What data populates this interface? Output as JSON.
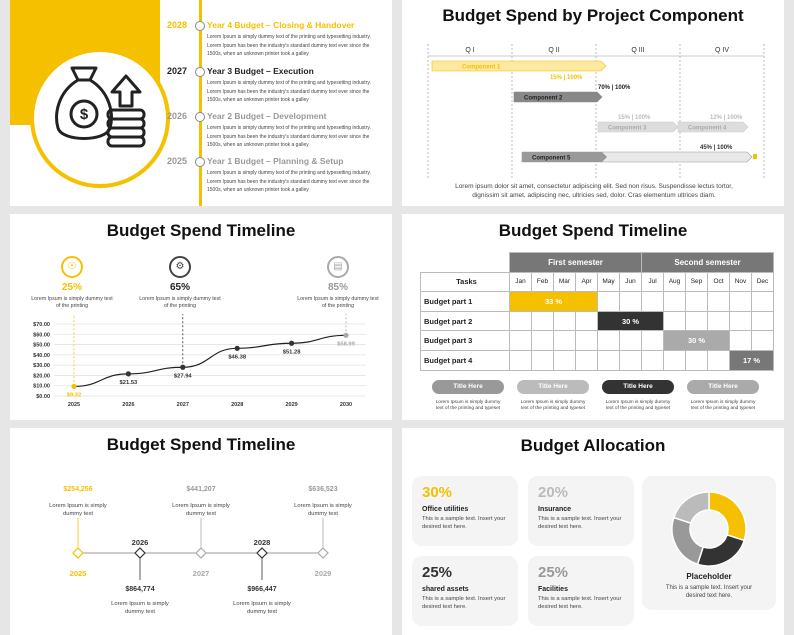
{
  "slide1": {
    "years": [
      {
        "year": "2028",
        "title": "Year 4 Budget – Closing & Handover",
        "desc": "Lorem Ipsum is simply dummy text of the printing and typesetting industry. Lorem Ipsum has been the industry's standard dummy text ever since the 1500s, when an unknown printer took a galley"
      },
      {
        "year": "2027",
        "title": "Year 3 Budget – Execution",
        "desc": "Lorem Ipsum is simply dummy text of the printing and typesetting industry. Lorem Ipsum has been the industry's standard dummy text ever since the 1500s, when an unknown printer took a galley"
      },
      {
        "year": "2026",
        "title": "Year 2 Budget – Development",
        "desc": "Lorem Ipsum is simply dummy text of the printing and typesetting industry. Lorem Ipsum has been the industry's standard dummy text ever since the 1500s, when an unknown printer took a galley"
      },
      {
        "year": "2025",
        "title": "Year 1 Budget – Planning & Setup",
        "desc": "Lorem Ipsum is simply dummy text of the printing and typesetting industry. Lorem Ipsum has been the industry's standard dummy text ever since the 1500s, when an unknown printer took a galley"
      }
    ],
    "icon": "money-bag-coins-icon",
    "accent": "#f5c000"
  },
  "slide2": {
    "title": "Budget Spend by Project Component",
    "quarters": [
      "Q I",
      "Q II",
      "Q III",
      "Q IV"
    ],
    "components": [
      {
        "name": "Component 1",
        "label": "15% | 100%"
      },
      {
        "name": "Component 2",
        "label": "70% | 100%"
      },
      {
        "name": "Component 3",
        "label": "15% | 100%"
      },
      {
        "name": "Component 4",
        "label": "12% | 100%"
      },
      {
        "name": "Component 5",
        "label": "45% | 100%"
      }
    ],
    "footer": "Lorem ipsum dolor sit amet, consectetur adipiscing elit. Sed non risus. Suspendisse lectus tortor, dignissim sit amet, adipiscing nec, ultricies sed, dolor. Cras elementum ultrices diam."
  },
  "slide3": {
    "title": "Budget Spend Timeline",
    "milestones": [
      {
        "pct": "25%",
        "text": "Lorem Ipsum is simply dummy text of the printing",
        "icon": "lightbulb-icon"
      },
      {
        "pct": "65%",
        "text": "Lorem Ipsum is simply dummy text of the printing",
        "icon": "gear-icon"
      },
      {
        "pct": "85%",
        "text": "Lorem Ipsum is simply dummy text of the printing",
        "icon": "chart-icon"
      }
    ],
    "chart_data": {
      "type": "line",
      "x": [
        "2025",
        "2026",
        "2027",
        "2028",
        "2029",
        "2030"
      ],
      "values": [
        9.32,
        21.53,
        27.94,
        46.38,
        51.28,
        58.99
      ],
      "value_labels": [
        "$9.32",
        "$21.53",
        "$27.94",
        "$46.38",
        "$51.28",
        "$58.99"
      ],
      "y_ticks": [
        "$0.00",
        "$10.00",
        "$20.00",
        "$30.00",
        "$40.00",
        "$50.00",
        "$60.00",
        "$70.00"
      ],
      "ylim": [
        0,
        70
      ]
    }
  },
  "slide4": {
    "title": "Budget Spend Timeline",
    "semesters": [
      "First semester",
      "Second semester"
    ],
    "tasks_header": "Tasks",
    "months": [
      "Jan",
      "Feb",
      "Mar",
      "Apr",
      "May",
      "Jun",
      "Jul",
      "Aug",
      "Sep",
      "Oct",
      "Nov",
      "Dec"
    ],
    "rows": [
      {
        "name": "Budget part 1",
        "label": "33 %"
      },
      {
        "name": "Budget part 2",
        "label": "30 %"
      },
      {
        "name": "Budget part 3",
        "label": "30 %"
      },
      {
        "name": "Budget part 4",
        "label": "17 %"
      }
    ],
    "pills": [
      {
        "label": "Title Here",
        "text": "Lorem Ipsum is simply dummy text of the printing and typeset"
      },
      {
        "label": "Title Here",
        "text": "Lorem Ipsum is simply dummy text of the printing and typeset"
      },
      {
        "label": "Title Here",
        "text": "Lorem Ipsum is simply dummy text of the printing and typeset"
      },
      {
        "label": "Title Here",
        "text": "Lorem Ipsum is simply dummy text of the printing and typeset"
      }
    ]
  },
  "slide5": {
    "title": "Budget Spend Timeline",
    "top": [
      {
        "amount": "$254,256",
        "text": "Lorem Ipsum is simply dummy text"
      },
      {
        "amount": "$441,207",
        "text": "Lorem Ipsum is simply dummy text"
      },
      {
        "amount": "$636,523",
        "text": "Lorem Ipsum is simply dummy text"
      }
    ],
    "bottom": [
      {
        "amount": "$864,774",
        "text": "Lorem Ipsum is simply dummy text"
      },
      {
        "amount": "$966,447",
        "text": "Lorem Ipsum is simply dummy text"
      }
    ],
    "years": [
      "2025",
      "2026",
      "2027",
      "2028",
      "2029"
    ]
  },
  "slide6": {
    "title": "Budget Allocation",
    "cards": [
      {
        "pct": "30%",
        "name": "Office utilities",
        "text": "This is a sample text. Insert your desired text here."
      },
      {
        "pct": "20%",
        "name": "Insurance",
        "text": "This is a sample text. Insert your desired text here."
      },
      {
        "pct": "25%",
        "name": "shared assets",
        "text": "This is a sample text. Insert your desired text here."
      },
      {
        "pct": "25%",
        "name": "Facilities",
        "text": "This is a sample text. Insert your desired text here."
      }
    ],
    "placeholder": {
      "title": "Placeholder",
      "text": "This is a sample text. Insert your desired text here."
    },
    "chart_data": {
      "type": "pie",
      "values": [
        30,
        20,
        25,
        25
      ],
      "colors": [
        "#f5c000",
        "#bbbbbb",
        "#999999",
        "#333333"
      ]
    }
  }
}
